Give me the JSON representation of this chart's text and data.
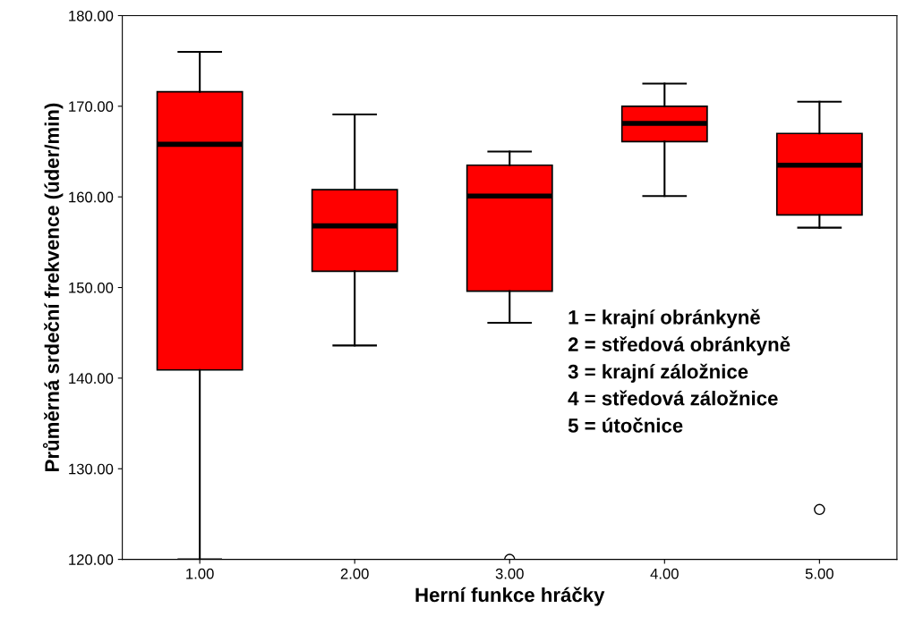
{
  "chart_data": {
    "type": "box",
    "xlabel": "Herní funkce hráčky",
    "ylabel": "Průměrná srdeční frekvence (úder/min)",
    "categories": [
      "1.00",
      "2.00",
      "3.00",
      "4.00",
      "5.00"
    ],
    "color": "#ff0000",
    "boxes": [
      {
        "low": 120,
        "q1": 140.9,
        "median": 165.8,
        "q3": 171.6,
        "high": 176
      },
      {
        "low": 143.6,
        "q1": 151.8,
        "median": 156.8,
        "q3": 160.8,
        "high": 169.1
      },
      {
        "low": 146.1,
        "q1": 149.6,
        "median": 160.1,
        "q3": 163.5,
        "high": 165,
        "outliers": [
          120
        ]
      },
      {
        "low": 160.1,
        "q1": 166.1,
        "median": 168.1,
        "q3": 170,
        "high": 172.5
      },
      {
        "low": 156.6,
        "q1": 158,
        "median": 163.5,
        "q3": 167,
        "high": 170.5,
        "outliers": [
          125.5
        ]
      }
    ],
    "ylim": [
      120,
      180
    ],
    "yticks": [
      {
        "value": 120,
        "label": "120.00"
      },
      {
        "value": 130,
        "label": "130.00"
      },
      {
        "value": 140,
        "label": "140.00"
      },
      {
        "value": 150,
        "label": "150.00"
      },
      {
        "value": 160,
        "label": "160.00"
      },
      {
        "value": 170,
        "label": "170.00"
      },
      {
        "value": 180,
        "label": "180.00"
      }
    ],
    "grid": false,
    "annotations": [
      "1 = krajní obránkyně",
      "2 = středová obránkyně",
      "3 = krajní záložnice",
      "4 = středová záložnice",
      "5 = útočnice"
    ]
  }
}
